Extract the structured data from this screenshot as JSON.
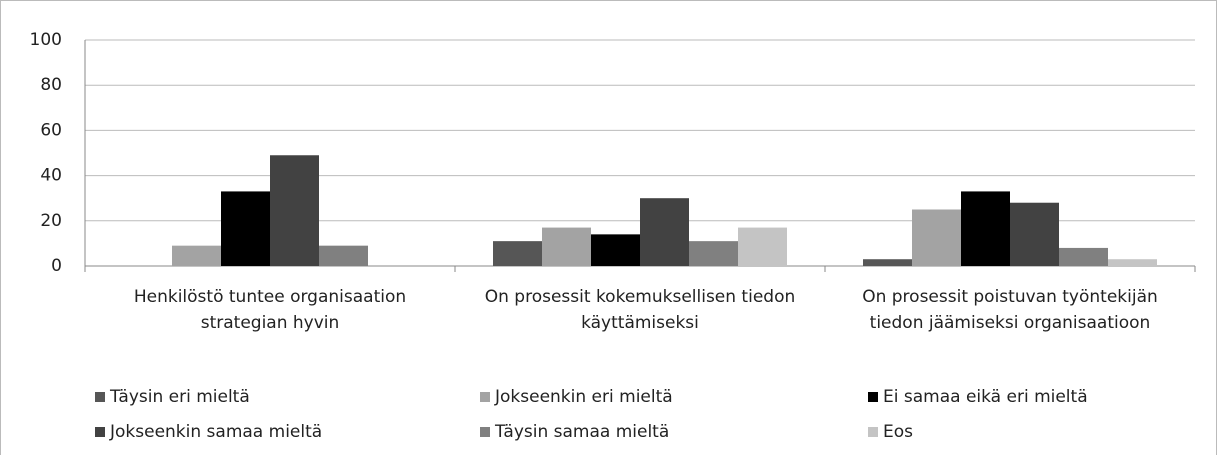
{
  "chart_data": {
    "type": "bar",
    "categories": [
      "Henkilöstö tuntee organisaation strategian hyvin",
      "On prosessit kokemuksellisen tiedon käyttämiseksi",
      "On prosessit poistuvan työntekijän tiedon jäämiseksi organisaatioon"
    ],
    "series": [
      {
        "name": "Täysin eri mieltä",
        "color": "#565656",
        "values": [
          0,
          11,
          3
        ]
      },
      {
        "name": "Jokseenkin eri mieltä",
        "color": "#a3a3a3",
        "values": [
          9,
          17,
          25
        ]
      },
      {
        "name": "Ei samaa eikä eri mieltä",
        "color": "#000000",
        "values": [
          33,
          14,
          33
        ]
      },
      {
        "name": "Jokseenkin samaa mieltä",
        "color": "#424242",
        "values": [
          49,
          30,
          28
        ]
      },
      {
        "name": "Täysin samaa mieltä",
        "color": "#808080",
        "values": [
          9,
          11,
          8
        ]
      },
      {
        "name": "Eos",
        "color": "#c4c4c4",
        "values": [
          0,
          17,
          3
        ]
      }
    ],
    "ylim": [
      0,
      100
    ],
    "yticks": [
      0,
      20,
      40,
      60,
      80,
      100
    ],
    "grid": true
  }
}
